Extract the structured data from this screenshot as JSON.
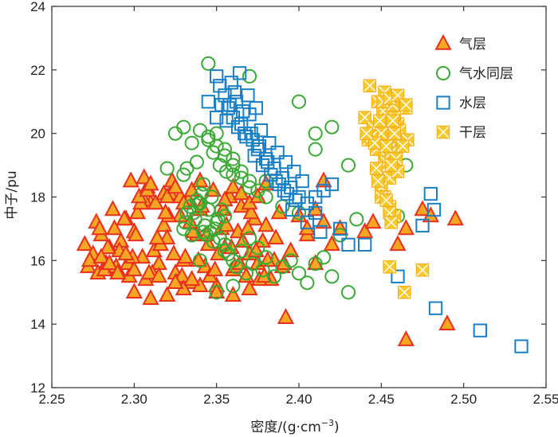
{
  "chart_data": {
    "type": "scatter",
    "title": "",
    "xlabel": "密度/(g·cm",
    "xlabel_sup": "−3",
    "xlabel_close": ")",
    "ylabel": "中子/pu",
    "xlim": [
      2.25,
      2.55
    ],
    "ylim": [
      12,
      24
    ],
    "xticks": [
      2.25,
      2.3,
      2.35,
      2.4,
      2.45,
      2.5,
      2.55
    ],
    "yticks": [
      12,
      14,
      16,
      18,
      20,
      22,
      24
    ],
    "xtick_labels": [
      "2.25",
      "2.30",
      "2.35",
      "2.40",
      "2.45",
      "2.50",
      "2.55"
    ],
    "ytick_labels": [
      "12",
      "14",
      "16",
      "18",
      "20",
      "22",
      "24"
    ],
    "legend_position": "top-right",
    "series": [
      {
        "name": "气层",
        "marker": "triangle",
        "fill": "#f5a623",
        "stroke": "#e8301f",
        "x": [
          2.27,
          2.272,
          2.275,
          2.278,
          2.28,
          2.283,
          2.285,
          2.288,
          2.29,
          2.292,
          2.295,
          2.297,
          2.3,
          2.302,
          2.305,
          2.307,
          2.31,
          2.312,
          2.315,
          2.318,
          2.32,
          2.322,
          2.325,
          2.328,
          2.33,
          2.333,
          2.335,
          2.338,
          2.34,
          2.343,
          2.345,
          2.348,
          2.35,
          2.353,
          2.355,
          2.358,
          2.36,
          2.363,
          2.365,
          2.368,
          2.37,
          2.373,
          2.375,
          2.378,
          2.38,
          2.383,
          2.385,
          2.388,
          2.39,
          2.395,
          2.4,
          2.405,
          2.41,
          2.415,
          2.42,
          2.425,
          2.273,
          2.277,
          2.282,
          2.287,
          2.291,
          2.296,
          2.301,
          2.306,
          2.311,
          2.316,
          2.321,
          2.326,
          2.331,
          2.336,
          2.341,
          2.346,
          2.351,
          2.356,
          2.361,
          2.366,
          2.371,
          2.376,
          2.381,
          2.386,
          2.391,
          2.279,
          2.284,
          2.289,
          2.294,
          2.299,
          2.304,
          2.309,
          2.314,
          2.319,
          2.324,
          2.329,
          2.334,
          2.339,
          2.344,
          2.349,
          2.354,
          2.359,
          2.364,
          2.369,
          2.374,
          2.379,
          2.298,
          2.303,
          2.308,
          2.313,
          2.318,
          2.323,
          2.328,
          2.306,
          2.308,
          2.31,
          2.32,
          2.325,
          2.33,
          2.335,
          2.34,
          2.355,
          2.36,
          2.365,
          2.37,
          2.375,
          2.38,
          2.415,
          2.41,
          2.405,
          2.44,
          2.445,
          2.46,
          2.465,
          2.475,
          2.48,
          2.49,
          2.495,
          2.392,
          2.465,
          2.3,
          2.31,
          2.32,
          2.33,
          2.34,
          2.35,
          2.36,
          2.37,
          2.28,
          2.285,
          2.29,
          2.295,
          2.3,
          2.315,
          2.325,
          2.335
        ],
        "y": [
          16.5,
          15.8,
          16.2,
          15.6,
          16.8,
          15.9,
          16.4,
          17.0,
          15.7,
          16.6,
          17.3,
          15.5,
          16.9,
          17.5,
          16.1,
          15.4,
          17.8,
          16.3,
          15.9,
          17.1,
          16.7,
          18.1,
          15.6,
          17.4,
          16.0,
          17.9,
          15.3,
          16.8,
          17.6,
          15.8,
          16.5,
          18.2,
          15.2,
          17.0,
          16.4,
          18.0,
          15.7,
          16.9,
          17.7,
          15.5,
          16.2,
          17.3,
          15.9,
          16.6,
          17.1,
          15.4,
          16.0,
          17.5,
          15.8,
          16.3,
          17.4,
          16.8,
          15.9,
          18.5,
          16.5,
          17.0,
          16.0,
          17.2,
          15.7,
          17.6,
          16.3,
          15.9,
          16.8,
          17.9,
          15.6,
          16.5,
          17.4,
          15.3,
          16.1,
          16.9,
          17.7,
          15.5,
          16.2,
          17.1,
          15.8,
          16.6,
          17.5,
          15.4,
          16.0,
          16.7,
          15.9,
          17.0,
          16.4,
          15.8,
          17.3,
          16.1,
          17.8,
          15.6,
          16.7,
          17.5,
          16.2,
          15.5,
          17.2,
          16.0,
          16.8,
          15.7,
          17.6,
          16.4,
          15.9,
          17.0,
          16.3,
          15.5,
          18.5,
          18.0,
          18.3,
          17.8,
          18.1,
          18.5,
          18.0,
          18.6,
          18.2,
          18.4,
          18.0,
          18.3,
          17.8,
          18.2,
          18.5,
          17.9,
          18.3,
          18.1,
          17.8,
          18.0,
          18.4,
          17.2,
          17.6,
          17.0,
          16.9,
          17.2,
          16.5,
          17.0,
          17.6,
          17.4,
          14.0,
          17.3,
          14.2,
          13.5,
          15.0,
          14.8,
          14.9,
          15.1,
          15.2,
          15.0,
          14.9,
          15.1,
          16.1,
          15.9,
          15.6,
          16.2,
          15.7,
          15.5,
          15.3,
          15.4
        ]
      },
      {
        "name": "气水同层",
        "marker": "circle",
        "fill": "none",
        "stroke": "#3aa935",
        "x": [
          2.33,
          2.332,
          2.335,
          2.337,
          2.34,
          2.342,
          2.345,
          2.347,
          2.35,
          2.352,
          2.355,
          2.338,
          2.343,
          2.348,
          2.334,
          2.341,
          2.346,
          2.351,
          2.336,
          2.344,
          2.349,
          2.339,
          2.331,
          2.353,
          2.355,
          2.357,
          2.36,
          2.362,
          2.365,
          2.368,
          2.37,
          2.372,
          2.375,
          2.378,
          2.38,
          2.385,
          2.39,
          2.395,
          2.4,
          2.405,
          2.41,
          2.415,
          2.42,
          2.425,
          2.43,
          2.435,
          2.345,
          2.35,
          2.355,
          2.36,
          2.365,
          2.37,
          2.375,
          2.33,
          2.325,
          2.32,
          2.335,
          2.34,
          2.345,
          2.35,
          2.355,
          2.36,
          2.365,
          2.37,
          2.38,
          2.39,
          2.4,
          2.41,
          2.43,
          2.345,
          2.37,
          2.38,
          2.41,
          2.42,
          2.4,
          2.465,
          2.46,
          2.35,
          2.36,
          2.355,
          2.34,
          2.33,
          2.332,
          2.338,
          2.342,
          2.348,
          2.352,
          2.356,
          2.36
        ],
        "y": [
          17.0,
          17.5,
          16.8,
          17.3,
          17.8,
          16.9,
          17.6,
          18.0,
          17.2,
          16.7,
          17.4,
          17.9,
          17.1,
          16.6,
          17.7,
          18.1,
          16.9,
          17.3,
          17.5,
          16.8,
          17.0,
          17.8,
          17.2,
          17.6,
          16.5,
          16.2,
          16.0,
          15.8,
          16.3,
          15.6,
          16.7,
          15.9,
          16.4,
          15.7,
          16.1,
          15.5,
          15.8,
          16.0,
          15.6,
          15.3,
          15.9,
          16.1,
          15.5,
          16.8,
          15.0,
          17.3,
          19.8,
          20.0,
          19.5,
          19.2,
          18.8,
          18.5,
          18.2,
          20.2,
          20.0,
          18.9,
          19.7,
          20.1,
          19.9,
          19.6,
          19.3,
          19.0,
          18.6,
          18.3,
          18.0,
          17.7,
          17.5,
          20.0,
          19.0,
          22.2,
          21.8,
          18.5,
          19.5,
          20.2,
          21.0,
          19.0,
          17.4,
          15.0,
          15.2,
          16.3,
          16.0,
          18.7,
          18.9,
          19.1,
          18.4,
          19.4,
          19.0,
          18.8,
          18.7
        ]
      },
      {
        "name": "水层",
        "marker": "square",
        "fill": "none",
        "stroke": "#1a7fc4",
        "x": [
          2.35,
          2.352,
          2.355,
          2.357,
          2.36,
          2.362,
          2.365,
          2.367,
          2.37,
          2.372,
          2.375,
          2.377,
          2.38,
          2.382,
          2.385,
          2.387,
          2.39,
          2.392,
          2.395,
          2.397,
          2.4,
          2.402,
          2.405,
          2.358,
          2.363,
          2.368,
          2.373,
          2.378,
          2.383,
          2.388,
          2.393,
          2.398,
          2.356,
          2.361,
          2.366,
          2.371,
          2.376,
          2.381,
          2.386,
          2.391,
          2.396,
          2.41,
          2.415,
          2.42,
          2.425,
          2.43,
          2.405,
          2.41,
          2.413,
          2.44,
          2.46,
          2.475,
          2.48,
          2.482,
          2.483,
          2.51,
          2.535,
          2.345,
          2.35,
          2.353,
          2.359,
          2.364,
          2.369,
          2.374
        ],
        "y": [
          21.8,
          21.5,
          21.2,
          20.8,
          20.5,
          21.0,
          20.3,
          20.0,
          20.6,
          19.8,
          19.5,
          20.1,
          19.2,
          19.7,
          18.9,
          19.4,
          18.6,
          19.1,
          18.3,
          18.8,
          18.0,
          18.5,
          17.8,
          20.9,
          20.2,
          19.9,
          19.3,
          19.0,
          18.7,
          18.4,
          18.1,
          17.9,
          20.4,
          21.3,
          20.7,
          20.0,
          19.6,
          19.1,
          18.5,
          18.2,
          17.6,
          18.0,
          18.2,
          18.4,
          17.0,
          16.5,
          17.2,
          17.5,
          16.9,
          16.5,
          15.5,
          17.1,
          18.1,
          17.6,
          14.5,
          13.8,
          13.3,
          21.0,
          20.5,
          20.9,
          21.6,
          21.9,
          21.2,
          20.8
        ]
      },
      {
        "name": "干层",
        "marker": "x-square",
        "fill": "#f7c92a",
        "stroke": "#f2b01e",
        "x": [
          2.44,
          2.442,
          2.445,
          2.447,
          2.45,
          2.452,
          2.455,
          2.457,
          2.46,
          2.462,
          2.465,
          2.448,
          2.453,
          2.458,
          2.444,
          2.451,
          2.456,
          2.461,
          2.446,
          2.454,
          2.459,
          2.449,
          2.441,
          2.463,
          2.443,
          2.452,
          2.457,
          2.447,
          2.455,
          2.45,
          2.452,
          2.455,
          2.458,
          2.46,
          2.456,
          2.448,
          2.453,
          2.457,
          2.451,
          2.455,
          2.46,
          2.465,
          2.458,
          2.45,
          2.455,
          2.453,
          2.456,
          2.466,
          2.463,
          2.455,
          2.475,
          2.464
        ],
        "y": [
          20.5,
          19.8,
          20.2,
          19.5,
          20.0,
          19.3,
          20.6,
          19.9,
          20.3,
          19.6,
          20.8,
          21.0,
          19.1,
          20.5,
          19.9,
          20.7,
          19.4,
          20.1,
          19.7,
          21.2,
          19.2,
          20.4,
          20.0,
          19.8,
          21.5,
          21.3,
          20.9,
          18.9,
          18.6,
          18.3,
          18.0,
          17.7,
          17.4,
          18.8,
          19.0,
          18.5,
          19.6,
          20.4,
          21.0,
          21.1,
          21.2,
          20.9,
          20.0,
          18.0,
          17.5,
          17.9,
          17.2,
          19.8,
          19.6,
          15.8,
          15.7,
          15.0
        ]
      }
    ]
  }
}
